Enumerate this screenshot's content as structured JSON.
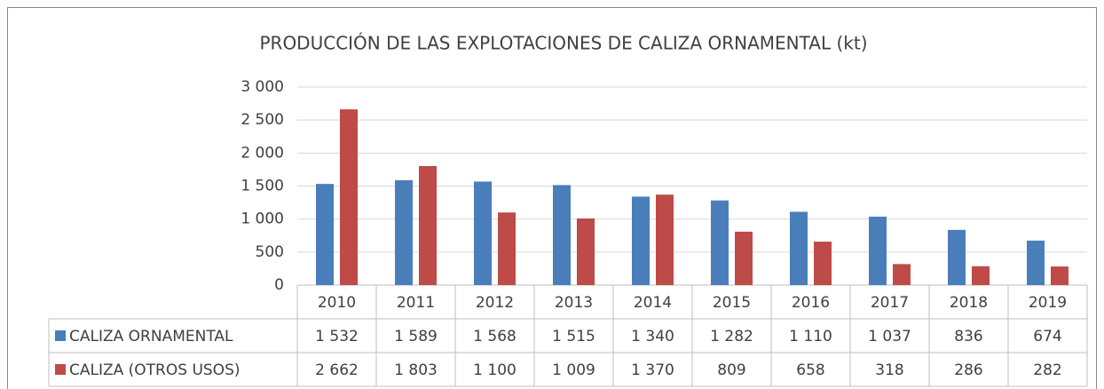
{
  "chart_data": {
    "type": "bar",
    "title": "PRODUCCIÓN DE LAS EXPLOTACIONES DE CALIZA ORNAMENTAL (kt)",
    "categories": [
      "2010",
      "2011",
      "2012",
      "2013",
      "2014",
      "2015",
      "2016",
      "2017",
      "2018",
      "2019"
    ],
    "series": [
      {
        "name": "CALIZA ORNAMENTAL",
        "color": "#4a7ebb",
        "values": [
          1532,
          1589,
          1568,
          1515,
          1340,
          1282,
          1110,
          1037,
          836,
          674
        ],
        "value_labels": [
          "1 532",
          "1 589",
          "1 568",
          "1 515",
          "1 340",
          "1 282",
          "1 110",
          "1 037",
          "836",
          "674"
        ]
      },
      {
        "name": "CALIZA (OTROS USOS)",
        "color": "#be4b48",
        "values": [
          2662,
          1803,
          1100,
          1009,
          1370,
          809,
          658,
          318,
          286,
          282
        ],
        "value_labels": [
          "2 662",
          "1 803",
          "1 100",
          "1 009",
          "1 370",
          "809",
          "658",
          "318",
          "286",
          "282"
        ]
      }
    ],
    "ylim": [
      0,
      3000
    ],
    "yticks": [
      0,
      500,
      {
        "value": 1000,
        "label": "1 000"
      },
      {
        "value": 1500,
        "label": "1 500"
      },
      {
        "value": 2000,
        "label": "2 000"
      },
      {
        "value": 2500,
        "label": "2 500"
      },
      {
        "value": 3000,
        "label": "3 000"
      }
    ],
    "grid": true
  }
}
